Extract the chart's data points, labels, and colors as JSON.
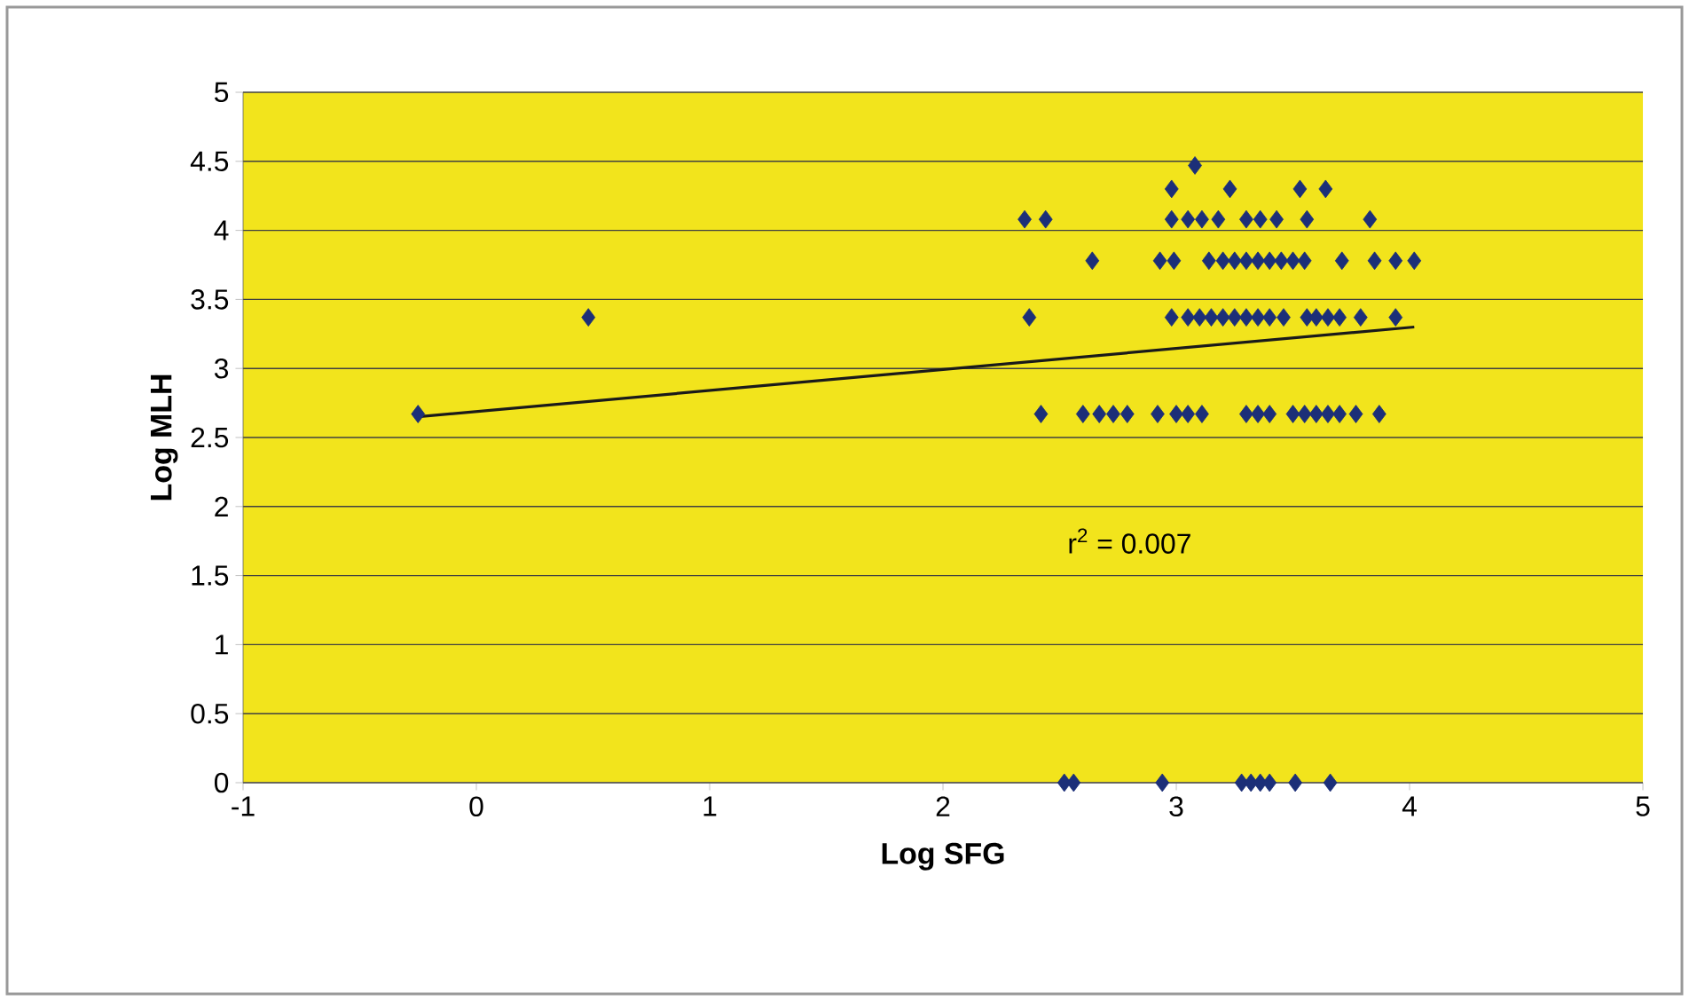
{
  "chart_data": {
    "type": "scatter",
    "xlabel": "Log SFG",
    "ylabel": "Log MLH",
    "xlim": [
      -1,
      5
    ],
    "ylim": [
      0,
      5
    ],
    "xticks": [
      -1,
      0,
      1,
      2,
      3,
      4,
      5
    ],
    "yticks": [
      0,
      0.5,
      1,
      1.5,
      2,
      2.5,
      3,
      3.5,
      4,
      4.5,
      5
    ],
    "grid": "y",
    "marker": "diamond",
    "annotations": [
      "r$^{2}$ = 0.007"
    ],
    "series": [
      {
        "color": "#1c2f78",
        "x": [
          -0.25,
          0.48,
          2.37,
          2.98,
          3.05,
          3.1,
          3.15,
          3.2,
          3.25,
          3.3,
          3.35,
          3.4,
          3.46,
          3.56,
          3.6,
          3.65,
          3.7,
          3.79,
          3.94,
          2.42,
          2.6,
          2.67,
          2.73,
          2.79,
          2.92,
          3.0,
          3.05,
          3.11,
          3.3,
          3.35,
          3.4,
          3.5,
          3.55,
          3.6,
          3.65,
          3.7,
          3.77,
          3.87,
          2.64,
          2.93,
          2.99,
          3.14,
          3.2,
          3.25,
          3.3,
          3.35,
          3.4,
          3.45,
          3.5,
          3.55,
          3.71,
          3.85,
          3.94,
          4.02,
          2.35,
          2.44,
          2.98,
          3.05,
          3.11,
          3.18,
          3.3,
          3.36,
          3.43,
          3.56,
          3.83,
          2.98,
          3.23,
          3.53,
          3.64,
          3.08,
          2.52,
          2.56,
          2.94,
          3.28,
          3.32,
          3.36,
          3.4,
          3.51,
          3.66
        ],
        "values": [
          2.67,
          3.37,
          3.37,
          3.37,
          3.37,
          3.37,
          3.37,
          3.37,
          3.37,
          3.37,
          3.37,
          3.37,
          3.37,
          3.37,
          3.37,
          3.37,
          3.37,
          3.37,
          3.37,
          2.67,
          2.67,
          2.67,
          2.67,
          2.67,
          2.67,
          2.67,
          2.67,
          2.67,
          2.67,
          2.67,
          2.67,
          2.67,
          2.67,
          2.67,
          2.67,
          2.67,
          2.67,
          2.67,
          3.78,
          3.78,
          3.78,
          3.78,
          3.78,
          3.78,
          3.78,
          3.78,
          3.78,
          3.78,
          3.78,
          3.78,
          3.78,
          3.78,
          3.78,
          3.78,
          4.08,
          4.08,
          4.08,
          4.08,
          4.08,
          4.08,
          4.08,
          4.08,
          4.08,
          4.08,
          4.08,
          4.3,
          4.3,
          4.3,
          4.3,
          4.47,
          0,
          0,
          0,
          0,
          0,
          0,
          0,
          0,
          0
        ]
      },
      {
        "type": "line",
        "marker": "none",
        "color": "#1a1a1a",
        "x": [
          -0.25,
          4.02
        ],
        "values": [
          2.65,
          3.3
        ]
      }
    ]
  }
}
